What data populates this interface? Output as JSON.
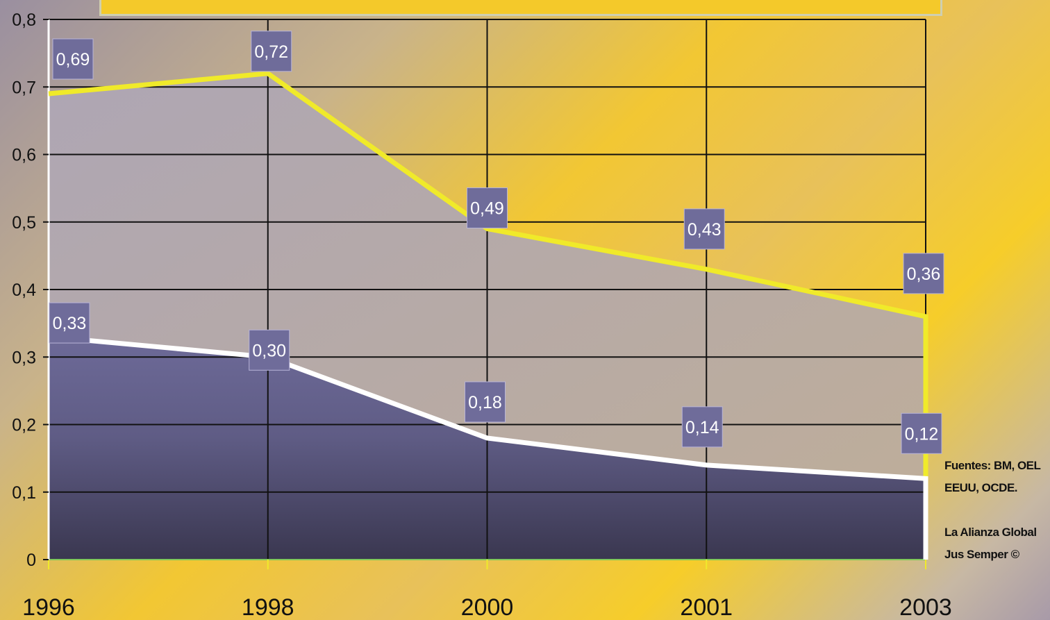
{
  "chart_data": {
    "type": "area",
    "x": [
      "1996",
      "1998",
      "2000",
      "2001",
      "2003"
    ],
    "series": [
      {
        "values": [
          0.69,
          0.72,
          0.49,
          0.43,
          0.36
        ],
        "labels": [
          "0,69",
          "0,72",
          "0,49",
          "0,43",
          "0,36"
        ],
        "color": "#f0ea2a"
      },
      {
        "values": [
          0.33,
          0.3,
          0.18,
          0.14,
          0.12
        ],
        "labels": [
          "0,33",
          "0,30",
          "0,18",
          "0,14",
          "0,12"
        ],
        "color": "#ffffff"
      }
    ],
    "ylim": [
      0,
      0.8
    ],
    "y_ticks": [
      "0",
      "0,1",
      "0,2",
      "0,3",
      "0,4",
      "0,5",
      "0,6",
      "0,7",
      "0,8"
    ],
    "grid": true
  },
  "source_note": [
    "Fuentes: BM, OEL",
    "EEUU, OCDE.",
    "",
    "La Alianza Global",
    "Jus Semper ©"
  ],
  "colors": {
    "label_box": "#6f6c9a",
    "label_box_border": "#b8b4d8",
    "grid": "#111111"
  }
}
